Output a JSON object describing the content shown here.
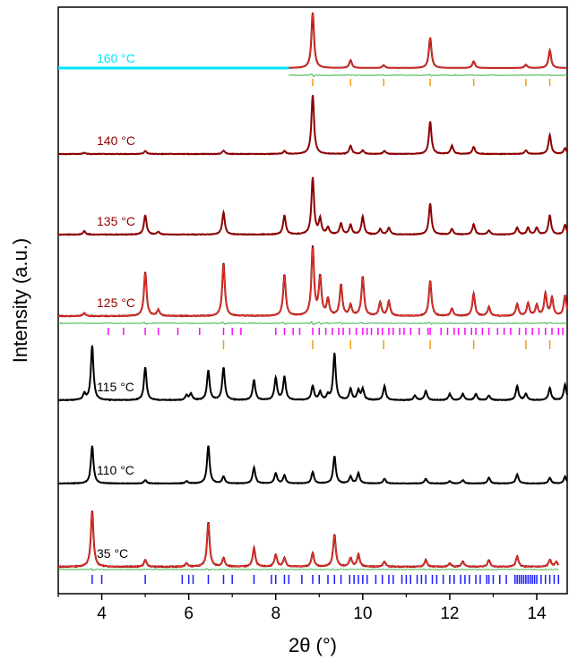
{
  "chart_data": {
    "type": "line",
    "xlabel": "2θ (°)",
    "ylabel": "Intensity (a.u.)",
    "xlim": [
      3,
      14.7
    ],
    "xticks": [
      4,
      6,
      8,
      10,
      12,
      14
    ],
    "xtick_labels": [
      "4",
      "6",
      "8",
      "10",
      "12",
      "14"
    ],
    "yticks": "none",
    "stacked_offset": true,
    "colors": {
      "fit": "#e8362d",
      "data_dark_red": "#8b0000",
      "data_black": "#000000",
      "data_cyan": "#00e5ff",
      "difference": "#3cb44b",
      "ticks_orange": "#f39c12",
      "ticks_magenta": "#ff00ff",
      "ticks_blue": "#1a1aff"
    },
    "series": [
      {
        "name": "160 °C",
        "color": "#00e5ff",
        "data_color": "#8b0000",
        "fit_color": "#e8362d",
        "has_fit": true,
        "baseline_color_before_8.3": "#00e5ff",
        "peaks": [
          [
            8.85,
            1.0
          ],
          [
            9.72,
            0.14
          ],
          [
            10.48,
            0.05
          ],
          [
            11.55,
            0.55
          ],
          [
            12.55,
            0.12
          ],
          [
            13.75,
            0.06
          ],
          [
            14.3,
            0.32
          ]
        ],
        "difference_curve": true,
        "reflection_ticks": {
          "color": "#f39c12",
          "positions": [
            8.85,
            9.72,
            10.48,
            11.55,
            12.55,
            13.75,
            14.3
          ]
        }
      },
      {
        "name": "140 °C",
        "color": "#8b0000",
        "has_fit": false,
        "peaks": [
          [
            3.6,
            0.02
          ],
          [
            5.0,
            0.05
          ],
          [
            6.8,
            0.06
          ],
          [
            8.2,
            0.05
          ],
          [
            8.85,
            1.0
          ],
          [
            9.72,
            0.14
          ],
          [
            10.0,
            0.06
          ],
          [
            10.5,
            0.05
          ],
          [
            11.55,
            0.55
          ],
          [
            12.05,
            0.14
          ],
          [
            12.55,
            0.12
          ],
          [
            13.75,
            0.06
          ],
          [
            14.3,
            0.32
          ],
          [
            14.65,
            0.1
          ]
        ]
      },
      {
        "name": "135 °C",
        "color": "#8b0000",
        "has_fit": false,
        "peaks": [
          [
            3.6,
            0.05
          ],
          [
            5.0,
            0.28
          ],
          [
            5.3,
            0.04
          ],
          [
            6.8,
            0.32
          ],
          [
            8.2,
            0.28
          ],
          [
            8.85,
            0.82
          ],
          [
            9.02,
            0.22
          ],
          [
            9.2,
            0.1
          ],
          [
            9.5,
            0.16
          ],
          [
            9.72,
            0.14
          ],
          [
            10.0,
            0.26
          ],
          [
            10.4,
            0.08
          ],
          [
            10.6,
            0.1
          ],
          [
            11.55,
            0.45
          ],
          [
            12.05,
            0.08
          ],
          [
            12.55,
            0.15
          ],
          [
            12.9,
            0.06
          ],
          [
            13.55,
            0.1
          ],
          [
            13.8,
            0.1
          ],
          [
            14.0,
            0.1
          ],
          [
            14.3,
            0.28
          ],
          [
            14.65,
            0.14
          ]
        ]
      },
      {
        "name": "125 °C",
        "color": "#8b0000",
        "fit_color": "#e8362d",
        "has_fit": true,
        "peaks": [
          [
            3.6,
            0.04
          ],
          [
            5.0,
            0.6
          ],
          [
            5.3,
            0.08
          ],
          [
            6.8,
            0.72
          ],
          [
            8.2,
            0.56
          ],
          [
            8.85,
            0.93
          ],
          [
            9.02,
            0.52
          ],
          [
            9.2,
            0.22
          ],
          [
            9.5,
            0.42
          ],
          [
            9.72,
            0.14
          ],
          [
            10.0,
            0.53
          ],
          [
            10.4,
            0.18
          ],
          [
            10.6,
            0.2
          ],
          [
            11.55,
            0.48
          ],
          [
            12.05,
            0.1
          ],
          [
            12.55,
            0.3
          ],
          [
            12.9,
            0.12
          ],
          [
            13.55,
            0.16
          ],
          [
            13.8,
            0.17
          ],
          [
            14.0,
            0.14
          ],
          [
            14.2,
            0.3
          ],
          [
            14.35,
            0.24
          ],
          [
            14.65,
            0.28
          ]
        ],
        "difference_curve": true,
        "reflection_ticks_magenta": [
          4.15,
          4.5,
          5.0,
          5.3,
          5.75,
          6.25,
          6.8,
          7.0,
          7.2,
          8.0,
          8.2,
          8.4,
          8.55,
          8.85,
          9.0,
          9.15,
          9.3,
          9.45,
          9.55,
          9.7,
          9.85,
          10.0,
          10.1,
          10.2,
          10.35,
          10.45,
          10.6,
          10.7,
          10.85,
          10.95,
          11.1,
          11.3,
          11.5,
          11.55,
          11.8,
          11.95,
          12.1,
          12.2,
          12.35,
          12.5,
          12.6,
          12.75,
          12.9,
          13.1,
          13.25,
          13.4,
          13.6,
          13.75,
          13.9,
          14.05,
          14.2,
          14.35,
          14.5,
          14.6
        ],
        "reflection_ticks_orange": [
          6.8,
          8.85,
          9.72,
          10.48,
          11.55,
          12.55,
          13.75,
          14.3
        ]
      },
      {
        "name": "115 °C",
        "color": "#000000",
        "has_fit": false,
        "peaks": [
          [
            3.6,
            0.08
          ],
          [
            3.78,
            0.7
          ],
          [
            5.0,
            0.42
          ],
          [
            5.95,
            0.06
          ],
          [
            6.05,
            0.08
          ],
          [
            6.45,
            0.38
          ],
          [
            6.8,
            0.42
          ],
          [
            7.5,
            0.26
          ],
          [
            8.0,
            0.28
          ],
          [
            8.2,
            0.3
          ],
          [
            8.85,
            0.18
          ],
          [
            9.02,
            0.1
          ],
          [
            9.2,
            0.06
          ],
          [
            9.35,
            0.6
          ],
          [
            9.72,
            0.14
          ],
          [
            9.9,
            0.12
          ],
          [
            10.0,
            0.14
          ],
          [
            10.5,
            0.18
          ],
          [
            11.2,
            0.06
          ],
          [
            11.45,
            0.12
          ],
          [
            12.0,
            0.08
          ],
          [
            12.3,
            0.08
          ],
          [
            12.6,
            0.08
          ],
          [
            12.9,
            0.06
          ],
          [
            13.55,
            0.18
          ],
          [
            13.75,
            0.08
          ],
          [
            14.3,
            0.16
          ],
          [
            14.65,
            0.2
          ]
        ]
      },
      {
        "name": "110 °C",
        "color": "#000000",
        "has_fit": false,
        "peaks": [
          [
            3.78,
            0.66
          ],
          [
            5.0,
            0.06
          ],
          [
            5.95,
            0.04
          ],
          [
            6.45,
            0.66
          ],
          [
            6.8,
            0.12
          ],
          [
            7.5,
            0.28
          ],
          [
            8.0,
            0.18
          ],
          [
            8.2,
            0.14
          ],
          [
            8.85,
            0.2
          ],
          [
            9.35,
            0.48
          ],
          [
            9.72,
            0.12
          ],
          [
            9.9,
            0.18
          ],
          [
            10.5,
            0.08
          ],
          [
            11.45,
            0.08
          ],
          [
            12.0,
            0.04
          ],
          [
            12.3,
            0.06
          ],
          [
            12.9,
            0.1
          ],
          [
            13.55,
            0.16
          ],
          [
            14.3,
            0.1
          ],
          [
            14.65,
            0.12
          ]
        ]
      },
      {
        "name": "35 °C",
        "color": "#8b0000",
        "fit_color": "#e8362d",
        "has_fit": true,
        "peaks": [
          [
            3.78,
            0.66
          ],
          [
            5.0,
            0.08
          ],
          [
            5.95,
            0.04
          ],
          [
            6.45,
            0.52
          ],
          [
            6.8,
            0.1
          ],
          [
            7.5,
            0.22
          ],
          [
            8.0,
            0.14
          ],
          [
            8.2,
            0.1
          ],
          [
            8.85,
            0.16
          ],
          [
            9.35,
            0.38
          ],
          [
            9.72,
            0.1
          ],
          [
            9.9,
            0.14
          ],
          [
            10.5,
            0.06
          ],
          [
            11.45,
            0.08
          ],
          [
            12.0,
            0.04
          ],
          [
            12.3,
            0.06
          ],
          [
            12.9,
            0.08
          ],
          [
            13.55,
            0.12
          ],
          [
            14.3,
            0.08
          ],
          [
            14.45,
            0.06
          ]
        ],
        "difference_curve": true,
        "reflection_ticks": {
          "color": "#1a1aff",
          "positions": [
            3.78,
            4.0,
            5.0,
            5.85,
            6.0,
            6.1,
            6.45,
            6.8,
            7.0,
            7.5,
            7.9,
            8.0,
            8.2,
            8.3,
            8.6,
            8.85,
            9.0,
            9.2,
            9.35,
            9.5,
            9.7,
            9.8,
            9.9,
            10.0,
            10.1,
            10.3,
            10.45,
            10.6,
            10.7,
            10.9,
            11.0,
            11.1,
            11.25,
            11.35,
            11.45,
            11.6,
            11.7,
            11.85,
            12.0,
            12.1,
            12.25,
            12.35,
            12.45,
            12.6,
            12.7,
            12.85,
            12.9,
            13.0,
            13.15,
            13.3,
            13.5,
            13.55,
            13.6,
            13.65,
            13.7,
            13.75,
            13.8,
            13.85,
            13.9,
            13.95,
            14.0,
            14.1,
            14.2,
            14.3,
            14.4,
            14.5
          ]
        }
      }
    ]
  }
}
